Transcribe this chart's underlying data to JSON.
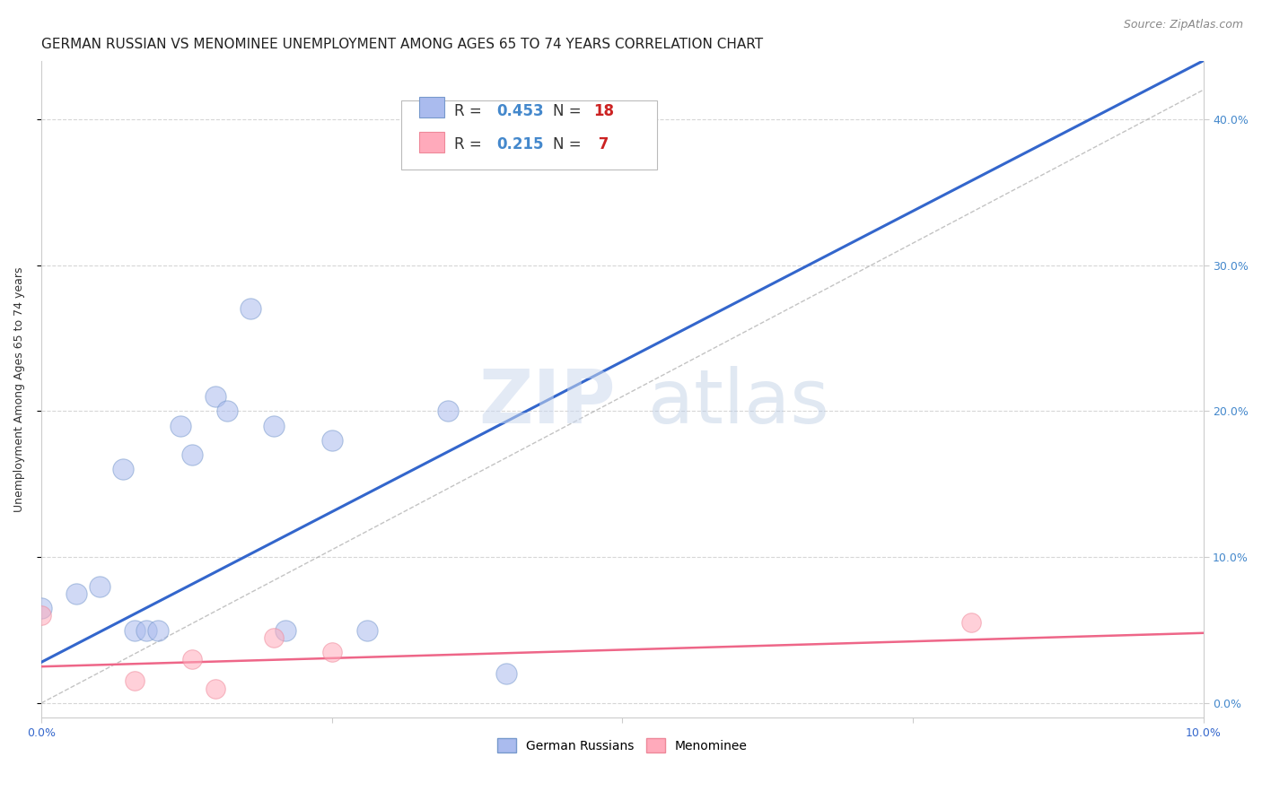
{
  "title": "GERMAN RUSSIAN VS MENOMINEE UNEMPLOYMENT AMONG AGES 65 TO 74 YEARS CORRELATION CHART",
  "source": "Source: ZipAtlas.com",
  "ylabel": "Unemployment Among Ages 65 to 74 years",
  "xlim": [
    0.0,
    0.1
  ],
  "ylim": [
    -0.01,
    0.44
  ],
  "ytick_values": [
    0.0,
    0.1,
    0.2,
    0.3,
    0.4
  ],
  "xtick_positions": [
    0.0,
    0.025,
    0.05,
    0.075,
    0.1
  ],
  "xtick_labels": [
    "0.0%",
    "",
    "",
    "",
    "10.0%"
  ],
  "background_color": "#ffffff",
  "grid_color": "#cccccc",
  "legend_color1": "#aabbee",
  "legend_color2": "#ffaabb",
  "scatter_edge_blue": "#7799cc",
  "scatter_edge_pink": "#ee8899",
  "german_russians_x": [
    0.0,
    0.003,
    0.005,
    0.007,
    0.008,
    0.009,
    0.01,
    0.012,
    0.013,
    0.015,
    0.016,
    0.018,
    0.02,
    0.021,
    0.025,
    0.028,
    0.035,
    0.04
  ],
  "german_russians_y": [
    0.065,
    0.075,
    0.08,
    0.16,
    0.05,
    0.05,
    0.05,
    0.19,
    0.17,
    0.21,
    0.2,
    0.27,
    0.19,
    0.05,
    0.18,
    0.05,
    0.2,
    0.02
  ],
  "menominee_x": [
    0.0,
    0.008,
    0.013,
    0.015,
    0.02,
    0.025,
    0.08
  ],
  "menominee_y": [
    0.06,
    0.015,
    0.03,
    0.01,
    0.045,
    0.035,
    0.055
  ],
  "blue_line_x": [
    0.0,
    0.1
  ],
  "blue_line_y": [
    0.028,
    0.44
  ],
  "pink_line_x": [
    0.0,
    0.1
  ],
  "pink_line_y": [
    0.025,
    0.048
  ],
  "dashed_line_x": [
    0.0,
    0.1
  ],
  "dashed_line_y": [
    0.0,
    0.42
  ],
  "scatter_size_blue": 280,
  "scatter_size_pink": 240,
  "scatter_alpha": 0.55,
  "scatter_color_blue": "#aabbee",
  "scatter_color_pink": "#ffaabb",
  "title_fontsize": 11,
  "source_fontsize": 9,
  "axis_label_fontsize": 9,
  "tick_fontsize": 9,
  "legend_fontsize": 11,
  "r_color": "#4488cc",
  "n_color": "#cc2222"
}
